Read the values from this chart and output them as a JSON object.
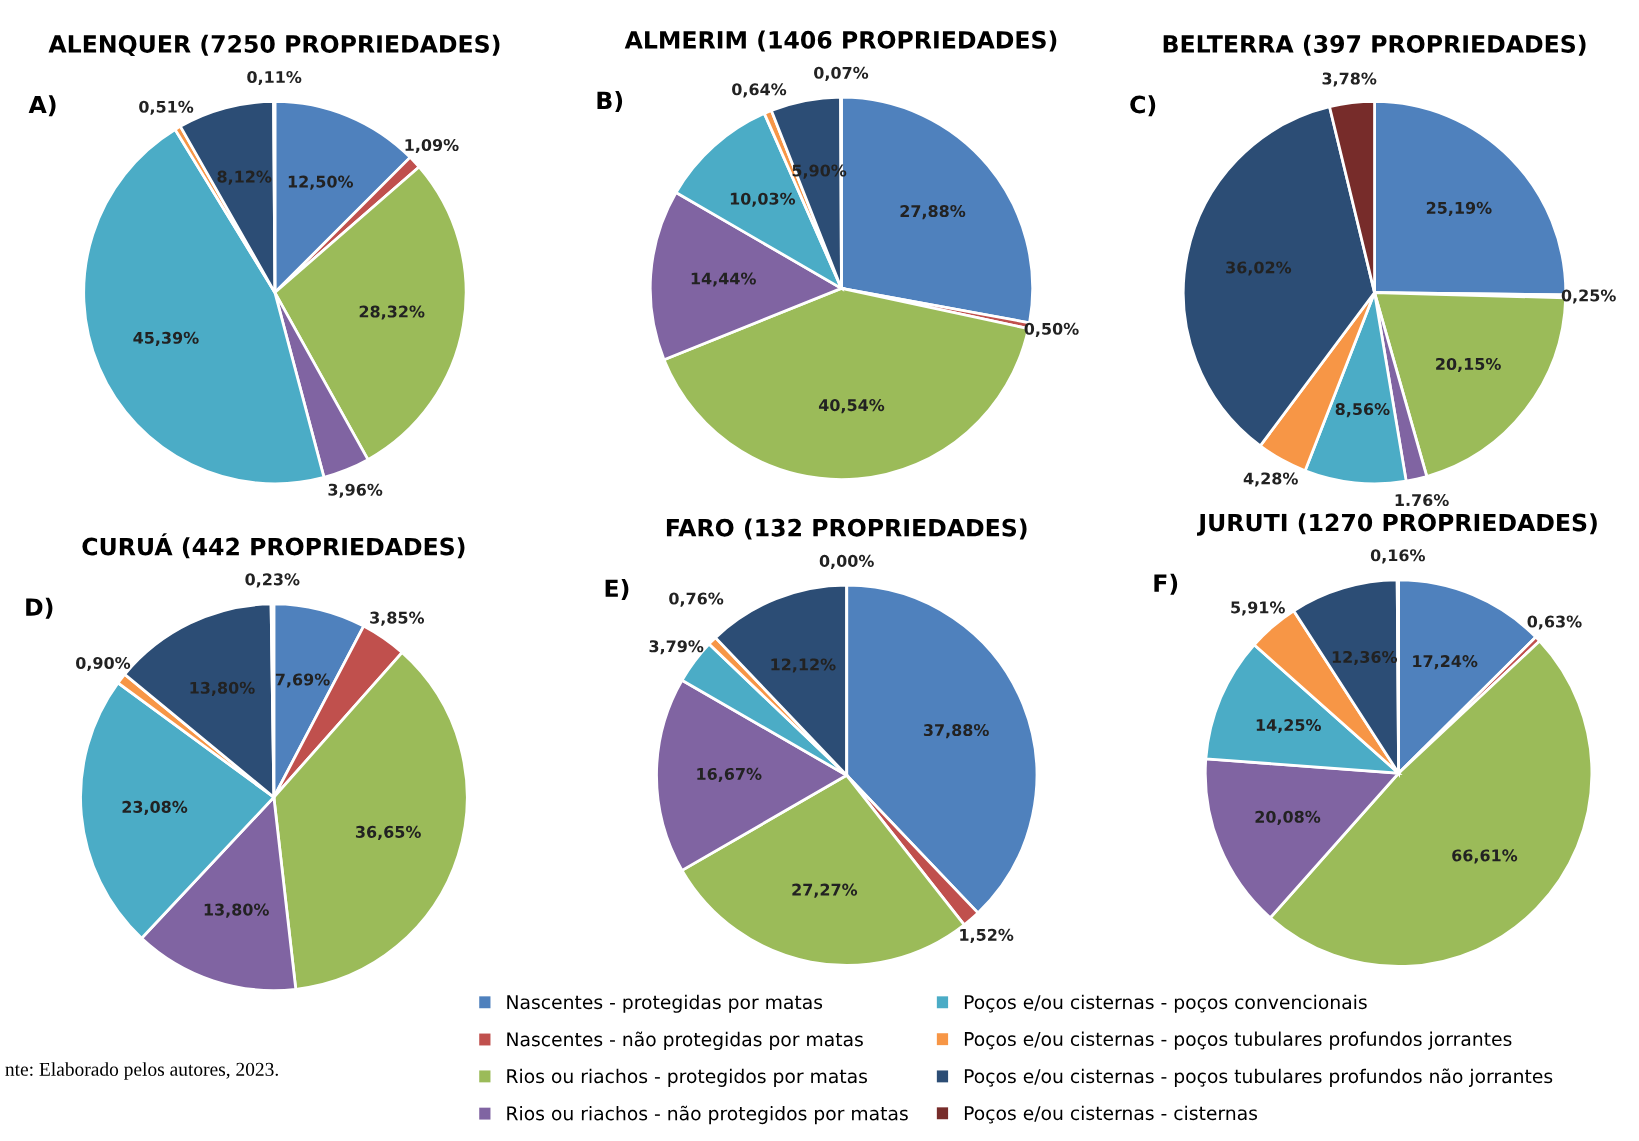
{
  "chart_data": [
    {
      "type": "pie",
      "title": "ALENQUER (7250 PROPRIEDADES)",
      "annotations": [
        "A)"
      ],
      "legend": "bottom",
      "categories": [
        "Nascentes - protegidas por matas",
        "Nascentes - não protegidas por matas",
        "Rios ou riachos - protegidos por matas",
        "Rios ou riachos - não protegidos por matas",
        "Poços e/ou cisternas - poços convencionais",
        "Poços e/ou cisternas - poços tubulares profundos jorrantes",
        "Poços e/ou cisternas - poços tubulares profundos não jorrantes",
        "Poços e/ou cisternas - cisternas"
      ],
      "values": [
        12.5,
        1.09,
        28.32,
        3.96,
        45.39,
        0.51,
        8.12,
        0.11
      ],
      "value_labels": [
        "12,50%",
        "1,09%",
        "28,32%",
        "3,96%",
        "45,39%",
        "0,51%",
        "8,12%",
        "0,11%"
      ],
      "colors": [
        "#4f81bd",
        "#c0504d",
        "#9bbb59",
        "#8064a2",
        "#4bacc6",
        "#f79646",
        "#2c4d75",
        "#772c2a"
      ]
    },
    {
      "type": "pie",
      "title": "ALMERIM (1406 PROPRIEDADES)",
      "annotations": [
        "B)"
      ],
      "categories": [
        null,
        null,
        null,
        null,
        null,
        null,
        null,
        null
      ],
      "values": [
        27.88,
        0.5,
        40.54,
        14.44,
        10.03,
        0.64,
        5.9,
        0.07
      ],
      "value_labels": [
        "27,88%",
        "0,50%",
        "40,54%",
        "14,44%",
        "10,03%",
        "0,64%",
        "5,90%",
        "0,07%"
      ],
      "colors": [
        "#4f81bd",
        "#c0504d",
        "#9bbb59",
        "#8064a2",
        "#4bacc6",
        "#f79646",
        "#2c4d75",
        "#772c2a"
      ]
    },
    {
      "type": "pie",
      "title": "BELTERRA (397 PROPRIEDADES)",
      "annotations": [
        "C)"
      ],
      "categories": [
        null,
        null,
        null,
        null,
        null,
        null,
        null,
        null
      ],
      "values": [
        25.19,
        0.25,
        20.15,
        1.76,
        8.56,
        4.28,
        36.02,
        3.78
      ],
      "value_labels": [
        "25,19%",
        "0,25%",
        "20,15%",
        "1.76%",
        "8,56%",
        "4,28%",
        "36,02%",
        "3,78%"
      ],
      "colors": [
        "#4f81bd",
        "#c0504d",
        "#9bbb59",
        "#8064a2",
        "#4bacc6",
        "#f79646",
        "#2c4d75",
        "#772c2a"
      ]
    },
    {
      "type": "pie",
      "title": "CURUÁ (442 PROPRIEDADES)",
      "annotations": [
        "D)",
        "nte: Elaborado pelos autores, 2023."
      ],
      "categories": [
        null,
        null,
        null,
        null,
        null,
        null,
        null,
        null
      ],
      "values": [
        7.69,
        3.85,
        36.65,
        13.8,
        23.08,
        0.9,
        13.8,
        0.23
      ],
      "value_labels": [
        "7,69%",
        "3,85%",
        "36,65%",
        "13,80%",
        "23,08%",
        "0,90%",
        "13,80%",
        "0,23%"
      ],
      "colors": [
        "#4f81bd",
        "#c0504d",
        "#9bbb59",
        "#8064a2",
        "#4bacc6",
        "#f79646",
        "#2c4d75",
        "#772c2a"
      ]
    },
    {
      "type": "pie",
      "title": "FARO (132 PROPRIEDADES)",
      "annotations": [
        "E)"
      ],
      "categories": [
        null,
        null,
        null,
        null,
        null,
        null,
        null,
        null
      ],
      "values": [
        37.88,
        1.52,
        27.27,
        16.67,
        3.79,
        0.76,
        12.12,
        0.0
      ],
      "value_labels": [
        "37,88%",
        "1,52%",
        "27,27%",
        "16,67%",
        "3,79%",
        "0,76%",
        "12,12%",
        "0,00%"
      ],
      "colors": [
        "#4f81bd",
        "#c0504d",
        "#9bbb59",
        "#8064a2",
        "#4bacc6",
        "#f79646",
        "#2c4d75",
        "#772c2a"
      ]
    },
    {
      "type": "pie",
      "title": "JURUTI (1270 PROPRIEDADES)",
      "annotations": [
        "F)"
      ],
      "categories": [
        null,
        null,
        null,
        null,
        null,
        null,
        null,
        null
      ],
      "values": [
        17.24,
        0.63,
        66.61,
        20.08,
        14.25,
        5.91,
        12.36,
        0.16
      ],
      "value_labels": [
        "17,24%",
        "0,63%",
        "66,61%",
        "20,08%",
        "14,25%",
        "5,91%",
        "12,36%",
        "0,16%"
      ],
      "colors": [
        "#4f81bd",
        "#c0504d",
        "#9bbb59",
        "#8064a2",
        "#4bacc6",
        "#f79646",
        "#2c4d75",
        "#772c2a"
      ]
    }
  ]
}
